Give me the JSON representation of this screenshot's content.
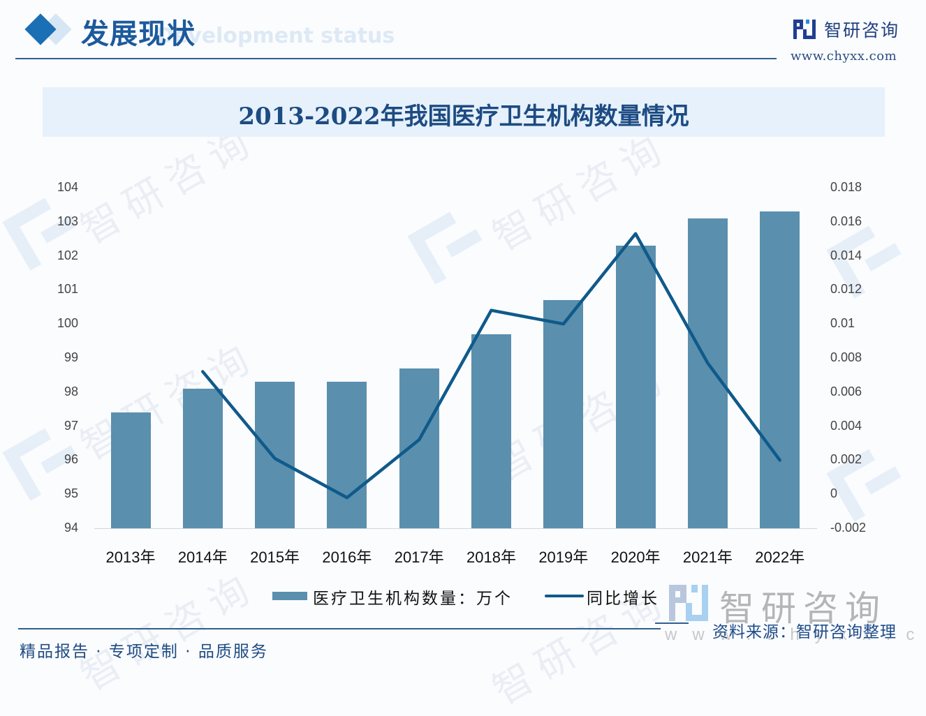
{
  "header": {
    "section_title": "发展现状",
    "section_subtitle": "Development status",
    "brand_name": "智研咨询",
    "brand_url": "www.chyxx.com"
  },
  "colors": {
    "bar": "#5a8fae",
    "line": "#0f5a8a",
    "title": "#1d4b82",
    "title_band": "#e6f1fb",
    "accent": "#1b6fb5"
  },
  "chart_data": {
    "type": "bar+line",
    "title": "2013-2022年我国医疗卫生机构数量情况",
    "categories": [
      "2013年",
      "2014年",
      "2015年",
      "2016年",
      "2017年",
      "2018年",
      "2019年",
      "2020年",
      "2021年",
      "2022年"
    ],
    "series": [
      {
        "name": "医疗卫生机构数量：万个",
        "type": "bar",
        "axis": "left",
        "values": [
          97.4,
          98.1,
          98.3,
          98.3,
          98.7,
          99.7,
          100.7,
          102.3,
          103.1,
          103.3
        ]
      },
      {
        "name": "同比增长",
        "type": "line",
        "axis": "right",
        "values": [
          null,
          0.0072,
          0.0021,
          -0.0002,
          0.0032,
          0.0108,
          0.01,
          0.0153,
          0.0077,
          0.002
        ]
      }
    ],
    "y_left": {
      "min": 94,
      "max": 104,
      "ticks": [
        "104",
        "103",
        "102",
        "101",
        "100",
        "99",
        "98",
        "97",
        "96",
        "95",
        "94"
      ]
    },
    "y_right": {
      "min": -0.002,
      "max": 0.018,
      "ticks": [
        "0.018",
        "0.016",
        "0.014",
        "0.012",
        "0.01",
        "0.008",
        "0.006",
        "0.004",
        "0.002",
        "0",
        "-0.002"
      ]
    },
    "xlabel": "",
    "ylabel": "",
    "grid": false,
    "legend_position": "bottom"
  },
  "legend": {
    "bar_label": "医疗卫生机构数量：万个",
    "line_label": "同比增长"
  },
  "source": {
    "brand_watermark": "智研咨询",
    "url_watermark": "www.chyxx.com",
    "text": "资料来源：智研咨询整理"
  },
  "footer": {
    "text": "精品报告 · 专项定制 · 品质服务"
  },
  "watermark": {
    "text": "智研咨询"
  }
}
